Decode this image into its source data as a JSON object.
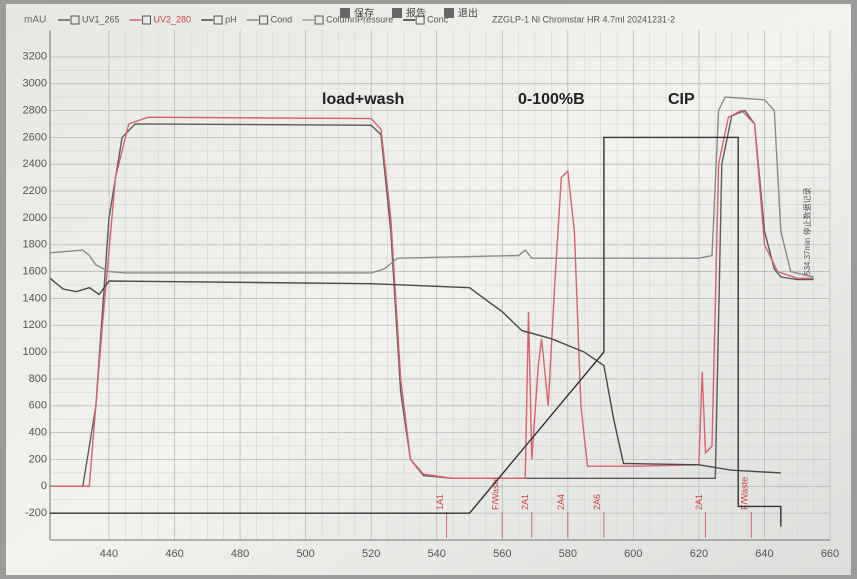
{
  "chart_data": {
    "type": "line",
    "title": "ZZGLP-1 Ni Chromstar HR 4.7ml 20241231-2",
    "y_label": "mAU",
    "toolbar": [
      "保存",
      "报告",
      "退出"
    ],
    "xlim": [
      422,
      660
    ],
    "ylim": [
      -400,
      3400
    ],
    "xticks": [
      440,
      460,
      480,
      500,
      520,
      540,
      560,
      580,
      600,
      620,
      640,
      660
    ],
    "yticks": [
      -200,
      0,
      200,
      400,
      600,
      800,
      1000,
      1200,
      1400,
      1600,
      1800,
      2000,
      2200,
      2400,
      2600,
      2800,
      3000,
      3200
    ],
    "grid": true,
    "annotations": [
      "load+wash",
      "0-100%B",
      "CIP",
      "534.37min 停止数据记录"
    ],
    "fractions": [
      {
        "x": 543,
        "label": "1A1"
      },
      {
        "x": 560,
        "label": "F/Waste"
      },
      {
        "x": 569,
        "label": "2A1"
      },
      {
        "x": 580,
        "label": "2A4"
      },
      {
        "x": 591,
        "label": "2A6"
      },
      {
        "x": 622,
        "label": "2A1"
      },
      {
        "x": 636,
        "label": "F/Waste"
      }
    ],
    "series": [
      {
        "name": "UV1_265",
        "color": "#5c5c5c",
        "x": [
          422,
          432,
          436,
          440,
          444,
          448,
          520,
          523,
          526,
          529,
          532,
          536,
          545,
          567,
          570,
          575,
          590,
          593,
          596,
          620,
          625,
          627,
          630,
          634,
          637,
          640,
          643,
          645,
          650,
          655
        ],
        "values": [
          0,
          0,
          600,
          2000,
          2600,
          2700,
          2690,
          2620,
          1900,
          700,
          200,
          80,
          60,
          60,
          60,
          60,
          60,
          60,
          60,
          60,
          60,
          2400,
          2760,
          2800,
          2700,
          1900,
          1620,
          1560,
          1540,
          1540
        ]
      },
      {
        "name": "UV2_280",
        "color": "#d9636b",
        "x": [
          422,
          434,
          438,
          442,
          446,
          452,
          520,
          523,
          526,
          529,
          532,
          536,
          545,
          567,
          568,
          569,
          571,
          572,
          574,
          576,
          578,
          580,
          582,
          584,
          586,
          600,
          620,
          621,
          622,
          624,
          626,
          629,
          633,
          637,
          640,
          644,
          650,
          655
        ],
        "values": [
          0,
          0,
          1200,
          2300,
          2700,
          2750,
          2740,
          2660,
          2000,
          800,
          200,
          90,
          60,
          60,
          1300,
          200,
          900,
          1100,
          600,
          1500,
          2300,
          2350,
          1900,
          600,
          150,
          150,
          160,
          850,
          250,
          300,
          2400,
          2750,
          2800,
          2700,
          1800,
          1600,
          1550,
          1550
        ]
      },
      {
        "name": "pH",
        "color": "#4a4a4a",
        "x": [
          422,
          426,
          430,
          434,
          437,
          440,
          520,
          550,
          560,
          566,
          575,
          585,
          591,
          594,
          597,
          620,
          630,
          645
        ],
        "values": [
          1550,
          1470,
          1450,
          1480,
          1430,
          1530,
          1510,
          1480,
          1300,
          1160,
          1100,
          1000,
          900,
          500,
          170,
          160,
          120,
          100
        ]
      },
      {
        "name": "Cond",
        "color": "#8a8a8a",
        "x": [
          422,
          432,
          434,
          436,
          440,
          445,
          520,
          524,
          528,
          565,
          567,
          569,
          600,
          620,
          624,
          626,
          628,
          640,
          643,
          645,
          648,
          655
        ],
        "values": [
          1740,
          1760,
          1720,
          1650,
          1600,
          1590,
          1590,
          1620,
          1700,
          1720,
          1760,
          1700,
          1700,
          1700,
          1720,
          2800,
          2900,
          2880,
          2800,
          1900,
          1600,
          1560
        ]
      },
      {
        "name": "ColumnPressure",
        "color": "#9aa39a",
        "x": [],
        "values": []
      },
      {
        "name": "Conc",
        "color": "#333333",
        "x": [
          422,
          550,
          591,
          591,
          632,
          632,
          645,
          645
        ],
        "values": [
          -200,
          -200,
          1000,
          2600,
          2600,
          -150,
          -150,
          -300
        ]
      }
    ]
  }
}
